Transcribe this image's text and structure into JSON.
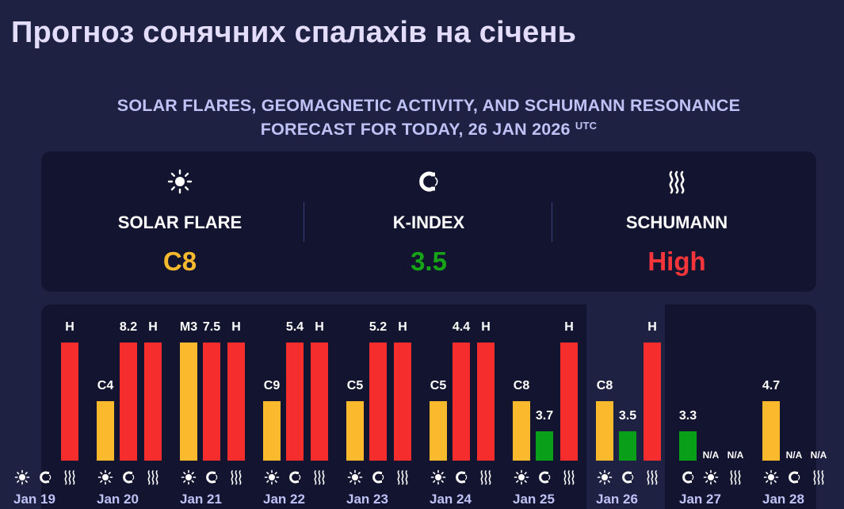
{
  "page": {
    "title": "Прогноз сонячних спалахів на січень",
    "subtitle_line1": "SOLAR FLARES, GEOMAGNETIC ACTIVITY, AND SCHUMANN RESONANCE",
    "subtitle_line2": "FORECAST FOR TODAY, 26 JAN 2026",
    "subtitle_sup": "UTC"
  },
  "summary": {
    "solar_flare": {
      "label": "SOLAR FLARE",
      "value": "C8",
      "color": "#f7b92d",
      "icon": "sun-icon"
    },
    "k_index": {
      "label": "K-INDEX",
      "value": "3.5",
      "color": "#17a317",
      "icon": "magnet-icon"
    },
    "schumann": {
      "label": "SCHUMANN",
      "value": "High",
      "color": "#f5353a",
      "icon": "waves-icon"
    }
  },
  "colors": {
    "flare_bar": "#fbb92d",
    "k_high": "#f52d2d",
    "k_low": "#0a9f18",
    "schumann_high": "#f52d2d",
    "icon": "#ffffff",
    "date": "#bfc2f5"
  },
  "chart_data": {
    "type": "bar",
    "note_levels": "flare and schumann levels shown by bar height; K-index value printed",
    "days": [
      {
        "date": "Jan 19",
        "flare": {
          "label": "",
          "level": null
        },
        "kindex": {
          "label": "",
          "value": null
        },
        "schumann": {
          "label": "H",
          "level": "High"
        }
      },
      {
        "date": "Jan 20",
        "flare": {
          "label": "C4",
          "level": 0.5
        },
        "kindex": {
          "label": "8.2",
          "value": 8.2
        },
        "schumann": {
          "label": "H",
          "level": "High"
        }
      },
      {
        "date": "Jan 21",
        "flare": {
          "label": "M3",
          "level": 1.0
        },
        "kindex": {
          "label": "7.5",
          "value": 7.5
        },
        "schumann": {
          "label": "H",
          "level": "High"
        }
      },
      {
        "date": "Jan 22",
        "flare": {
          "label": "C9",
          "level": 0.5
        },
        "kindex": {
          "label": "5.4",
          "value": 5.4
        },
        "schumann": {
          "label": "H",
          "level": "High"
        }
      },
      {
        "date": "Jan 23",
        "flare": {
          "label": "C5",
          "level": 0.5
        },
        "kindex": {
          "label": "5.2",
          "value": 5.2
        },
        "schumann": {
          "label": "H",
          "level": "High"
        }
      },
      {
        "date": "Jan 24",
        "flare": {
          "label": "C5",
          "level": 0.5
        },
        "kindex": {
          "label": "4.4",
          "value": 4.4
        },
        "schumann": {
          "label": "H",
          "level": "High"
        }
      },
      {
        "date": "Jan 25",
        "flare": {
          "label": "C8",
          "level": 0.5
        },
        "kindex": {
          "label": "3.7",
          "value": 3.7
        },
        "schumann": {
          "label": "H",
          "level": "High"
        }
      },
      {
        "date": "Jan 26",
        "flare": {
          "label": "C8",
          "level": 0.5
        },
        "kindex": {
          "label": "3.5",
          "value": 3.5
        },
        "schumann": {
          "label": "H",
          "level": "High"
        },
        "highlight": true
      },
      {
        "date": "Jan 27",
        "order": [
          "kindex",
          "flare",
          "schumann"
        ],
        "kindex": {
          "label": "3.3",
          "value": 3.3
        },
        "flare": {
          "label": "N/A",
          "level": null
        },
        "schumann": {
          "label": "N/A",
          "level": null
        }
      },
      {
        "date": "Jan 28",
        "order": [
          "flare",
          "kindex",
          "schumann"
        ],
        "flare": {
          "label": "4.7",
          "level": 0.5
        },
        "kindex": {
          "label": "N/A",
          "value": null
        },
        "schumann": {
          "label": "N/A",
          "level": null
        }
      }
    ]
  }
}
